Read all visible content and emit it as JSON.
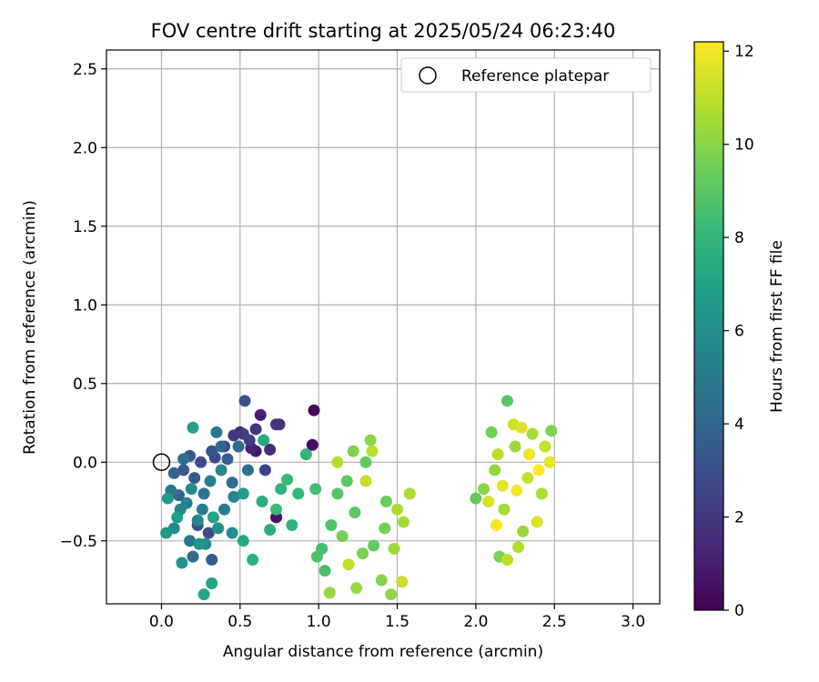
{
  "chart_data": {
    "type": "scatter",
    "title": "FOV centre drift starting at 2025/05/24 06:23:40",
    "xlabel": "Angular distance from reference (arcmin)",
    "ylabel": "Rotation from reference (arcmin)",
    "xlim": [
      -0.35,
      3.17
    ],
    "ylim": [
      -0.9,
      2.62
    ],
    "xticks": [
      0.0,
      0.5,
      1.0,
      1.5,
      2.0,
      2.5,
      3.0
    ],
    "xtick_labels": [
      "0.0",
      "0.5",
      "1.0",
      "1.5",
      "2.0",
      "2.5",
      "3.0"
    ],
    "yticks": [
      -0.5,
      0.0,
      0.5,
      1.0,
      1.5,
      2.0,
      2.5
    ],
    "ytick_labels": [
      "−0.5",
      "0.0",
      "0.5",
      "1.0",
      "1.5",
      "2.0",
      "2.5"
    ],
    "grid": true,
    "legend": {
      "placement": "top-right",
      "entries": [
        {
          "label": "Reference platepar",
          "marker": "open-circle"
        }
      ]
    },
    "reference_point": {
      "x": 0.0,
      "y": 0.0
    },
    "colorbar": {
      "label": "Hours from first FF file",
      "cmap": "viridis",
      "range": [
        0,
        12.2
      ],
      "ticks": [
        0,
        2,
        4,
        6,
        8,
        10,
        12
      ],
      "tick_labels": [
        "0",
        "2",
        "4",
        "6",
        "8",
        "10",
        "12"
      ]
    },
    "cmap_stops": [
      "#440154",
      "#482878",
      "#3e4989",
      "#31688e",
      "#26828e",
      "#1f9e89",
      "#35b779",
      "#6ece58",
      "#b5de2b",
      "#fde725"
    ],
    "points": [
      {
        "x": 0.97,
        "y": 0.33,
        "c": 0.2
      },
      {
        "x": 0.96,
        "y": 0.11,
        "c": 0.4
      },
      {
        "x": 0.73,
        "y": -0.35,
        "c": 0.6
      },
      {
        "x": 0.6,
        "y": 0.07,
        "c": 0.8
      },
      {
        "x": 0.63,
        "y": 0.3,
        "c": 1.0
      },
      {
        "x": 0.57,
        "y": 0.09,
        "c": 1.1
      },
      {
        "x": 0.5,
        "y": 0.19,
        "c": 1.2
      },
      {
        "x": 0.69,
        "y": 0.08,
        "c": 1.5
      },
      {
        "x": 0.75,
        "y": 0.24,
        "c": 1.6
      },
      {
        "x": 0.73,
        "y": 0.24,
        "c": 1.8
      },
      {
        "x": 0.6,
        "y": 0.21,
        "c": 1.9
      },
      {
        "x": 0.46,
        "y": 0.17,
        "c": 2.0
      },
      {
        "x": 0.52,
        "y": 0.18,
        "c": 2.2
      },
      {
        "x": 0.56,
        "y": 0.14,
        "c": 2.3
      },
      {
        "x": 0.66,
        "y": -0.05,
        "c": 2.4
      },
      {
        "x": 0.4,
        "y": 0.1,
        "c": 2.5
      },
      {
        "x": 0.34,
        "y": 0.03,
        "c": 2.7
      },
      {
        "x": 0.25,
        "y": 0.0,
        "c": 2.8
      },
      {
        "x": 0.3,
        "y": -0.45,
        "c": 2.9
      },
      {
        "x": 0.23,
        "y": -0.4,
        "c": 3.0
      },
      {
        "x": 0.53,
        "y": 0.39,
        "c": 3.1
      },
      {
        "x": 0.32,
        "y": 0.07,
        "c": 3.2
      },
      {
        "x": 0.18,
        "y": 0.04,
        "c": 3.3
      },
      {
        "x": 0.14,
        "y": -0.05,
        "c": 3.4
      },
      {
        "x": 0.21,
        "y": -0.1,
        "c": 3.5
      },
      {
        "x": 0.32,
        "y": -0.62,
        "c": 3.6
      },
      {
        "x": 0.42,
        "y": 0.02,
        "c": 3.7
      },
      {
        "x": 0.08,
        "y": -0.07,
        "c": 3.8
      },
      {
        "x": 0.11,
        "y": -0.21,
        "c": 3.9
      },
      {
        "x": 0.38,
        "y": 0.1,
        "c": 4.0
      },
      {
        "x": 0.2,
        "y": -0.6,
        "c": 4.1
      },
      {
        "x": 0.49,
        "y": 0.1,
        "c": 4.2
      },
      {
        "x": 0.45,
        "y": -0.13,
        "c": 4.3
      },
      {
        "x": 0.14,
        "y": 0.02,
        "c": 4.4
      },
      {
        "x": 0.55,
        "y": -0.05,
        "c": 4.5
      },
      {
        "x": 0.27,
        "y": -0.2,
        "c": 4.6
      },
      {
        "x": 0.18,
        "y": -0.5,
        "c": 4.7
      },
      {
        "x": 0.35,
        "y": 0.19,
        "c": 4.8
      },
      {
        "x": 0.06,
        "y": -0.18,
        "c": 4.9
      },
      {
        "x": 0.4,
        "y": -0.3,
        "c": 5.0
      },
      {
        "x": 0.26,
        "y": -0.3,
        "c": 5.1
      },
      {
        "x": 0.16,
        "y": -0.26,
        "c": 5.2
      },
      {
        "x": 0.31,
        "y": -0.12,
        "c": 5.3
      },
      {
        "x": 0.46,
        "y": -0.22,
        "c": 5.4
      },
      {
        "x": 0.12,
        "y": -0.3,
        "c": 5.5
      },
      {
        "x": 0.23,
        "y": -0.37,
        "c": 5.6
      },
      {
        "x": 0.38,
        "y": -0.05,
        "c": 5.7
      },
      {
        "x": 0.08,
        "y": -0.42,
        "c": 5.8
      },
      {
        "x": 0.28,
        "y": -0.52,
        "c": 5.9
      },
      {
        "x": 0.19,
        "y": -0.17,
        "c": 6.0
      },
      {
        "x": 0.45,
        "y": -0.45,
        "c": 6.1
      },
      {
        "x": 0.36,
        "y": -0.42,
        "c": 6.2
      },
      {
        "x": 0.13,
        "y": -0.64,
        "c": 6.3
      },
      {
        "x": 0.24,
        "y": -0.52,
        "c": 6.4
      },
      {
        "x": 0.03,
        "y": -0.45,
        "c": 6.5
      },
      {
        "x": 0.52,
        "y": -0.2,
        "c": 6.6
      },
      {
        "x": 0.04,
        "y": -0.23,
        "c": 6.7
      },
      {
        "x": 0.1,
        "y": -0.35,
        "c": 6.8
      },
      {
        "x": 0.2,
        "y": 0.22,
        "c": 6.9
      },
      {
        "x": 0.33,
        "y": -0.35,
        "c": 7.0
      },
      {
        "x": 0.32,
        "y": -0.77,
        "c": 7.1
      },
      {
        "x": 0.27,
        "y": -0.84,
        "c": 7.2
      },
      {
        "x": 0.52,
        "y": -0.5,
        "c": 7.3
      },
      {
        "x": 0.65,
        "y": 0.14,
        "c": 7.4
      },
      {
        "x": 0.64,
        "y": -0.25,
        "c": 7.5
      },
      {
        "x": 0.69,
        "y": -0.43,
        "c": 7.6
      },
      {
        "x": 0.58,
        "y": -0.62,
        "c": 7.7
      },
      {
        "x": 0.76,
        "y": -0.17,
        "c": 7.8
      },
      {
        "x": 0.83,
        "y": -0.4,
        "c": 7.9
      },
      {
        "x": 0.92,
        "y": 0.05,
        "c": 8.0
      },
      {
        "x": 0.87,
        "y": -0.2,
        "c": 8.1
      },
      {
        "x": 0.8,
        "y": -0.11,
        "c": 8.2
      },
      {
        "x": 0.73,
        "y": -0.3,
        "c": 8.3
      },
      {
        "x": 0.98,
        "y": -0.17,
        "c": 8.4
      },
      {
        "x": 1.02,
        "y": -0.55,
        "c": 8.5
      },
      {
        "x": 1.04,
        "y": -0.69,
        "c": 8.6
      },
      {
        "x": 0.99,
        "y": -0.6,
        "c": 8.7
      },
      {
        "x": 1.08,
        "y": -0.4,
        "c": 8.8
      },
      {
        "x": 1.12,
        "y": -0.2,
        "c": 8.9
      },
      {
        "x": 1.18,
        "y": -0.12,
        "c": 9.0
      },
      {
        "x": 1.23,
        "y": -0.32,
        "c": 9.1
      },
      {
        "x": 1.3,
        "y": 0.0,
        "c": 9.2
      },
      {
        "x": 1.35,
        "y": -0.53,
        "c": 9.3
      },
      {
        "x": 1.43,
        "y": -0.25,
        "c": 9.4
      },
      {
        "x": 1.42,
        "y": -0.42,
        "c": 9.5
      },
      {
        "x": 1.15,
        "y": -0.47,
        "c": 9.6
      },
      {
        "x": 1.28,
        "y": -0.58,
        "c": 9.7
      },
      {
        "x": 1.22,
        "y": 0.07,
        "c": 9.8
      },
      {
        "x": 1.4,
        "y": -0.75,
        "c": 9.9
      },
      {
        "x": 1.33,
        "y": 0.14,
        "c": 10.0
      },
      {
        "x": 1.46,
        "y": -0.84,
        "c": 10.1
      },
      {
        "x": 1.07,
        "y": -0.83,
        "c": 10.2
      },
      {
        "x": 1.24,
        "y": -0.8,
        "c": 10.3
      },
      {
        "x": 1.48,
        "y": -0.55,
        "c": 10.4
      },
      {
        "x": 1.54,
        "y": -0.38,
        "c": 10.5
      },
      {
        "x": 1.58,
        "y": -0.2,
        "c": 10.6
      },
      {
        "x": 1.5,
        "y": -0.3,
        "c": 10.7
      },
      {
        "x": 1.12,
        "y": 0.0,
        "c": 10.8
      },
      {
        "x": 1.34,
        "y": 0.07,
        "c": 10.9
      },
      {
        "x": 1.19,
        "y": -0.65,
        "c": 11.0
      },
      {
        "x": 1.3,
        "y": -0.12,
        "c": 11.1
      },
      {
        "x": 1.53,
        "y": -0.76,
        "c": 11.2
      },
      {
        "x": 2.2,
        "y": 0.39,
        "c": 9.0
      },
      {
        "x": 2.0,
        "y": -0.23,
        "c": 9.2
      },
      {
        "x": 2.1,
        "y": 0.19,
        "c": 9.5
      },
      {
        "x": 2.15,
        "y": -0.6,
        "c": 9.7
      },
      {
        "x": 2.48,
        "y": 0.2,
        "c": 9.8
      },
      {
        "x": 2.05,
        "y": -0.17,
        "c": 10.0
      },
      {
        "x": 2.12,
        "y": -0.05,
        "c": 10.2
      },
      {
        "x": 2.3,
        "y": -0.44,
        "c": 10.3
      },
      {
        "x": 2.25,
        "y": 0.1,
        "c": 10.4
      },
      {
        "x": 2.18,
        "y": -0.3,
        "c": 10.5
      },
      {
        "x": 2.36,
        "y": 0.18,
        "c": 10.6
      },
      {
        "x": 2.42,
        "y": -0.2,
        "c": 10.7
      },
      {
        "x": 2.27,
        "y": -0.54,
        "c": 10.8
      },
      {
        "x": 2.14,
        "y": 0.05,
        "c": 10.9
      },
      {
        "x": 2.2,
        "y": -0.62,
        "c": 11.0
      },
      {
        "x": 2.33,
        "y": -0.1,
        "c": 11.1
      },
      {
        "x": 2.44,
        "y": 0.1,
        "c": 11.2
      },
      {
        "x": 2.24,
        "y": 0.24,
        "c": 11.3
      },
      {
        "x": 2.08,
        "y": -0.25,
        "c": 11.4
      },
      {
        "x": 2.39,
        "y": -0.38,
        "c": 11.5
      },
      {
        "x": 2.29,
        "y": 0.22,
        "c": 11.6
      },
      {
        "x": 2.17,
        "y": -0.15,
        "c": 11.7
      },
      {
        "x": 2.47,
        "y": 0.0,
        "c": 11.8
      },
      {
        "x": 2.34,
        "y": 0.05,
        "c": 11.9
      },
      {
        "x": 2.26,
        "y": -0.18,
        "c": 12.0
      },
      {
        "x": 2.13,
        "y": -0.4,
        "c": 12.1
      },
      {
        "x": 2.4,
        "y": -0.05,
        "c": 12.2
      }
    ]
  }
}
